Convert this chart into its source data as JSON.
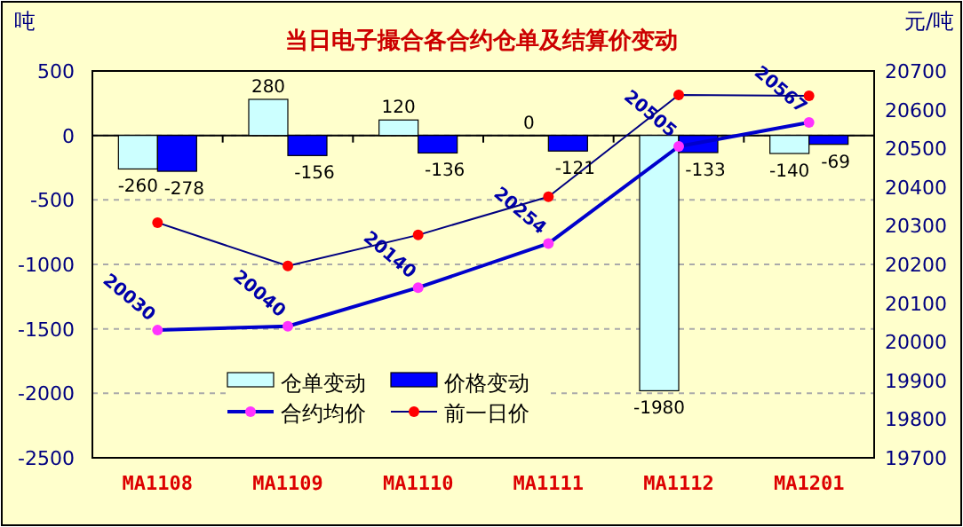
{
  "chart_data": {
    "type": "bar",
    "title": "当日电子撮合各合约仓单及结算价变动",
    "ylabel": "吨",
    "y2label": "元/吨",
    "categories": [
      "MA1108",
      "MA1109",
      "MA1110",
      "MA1111",
      "MA1112",
      "MA1201"
    ],
    "series": [
      {
        "name": "仓单变动",
        "color": "#ccffff",
        "values": [
          -260,
          280,
          120,
          0,
          -1980,
          -140
        ],
        "value_labels": [
          "-260",
          "280",
          "120",
          "0",
          "-1980",
          "-140"
        ]
      },
      {
        "name": "价格变动",
        "color": "#0000ff",
        "values": [
          -278,
          -156,
          -136,
          -121,
          -133,
          -69
        ],
        "value_labels": [
          "-278",
          "-156",
          "-136",
          "-121",
          "-133",
          "-69"
        ]
      },
      {
        "name": "合约均价",
        "type": "line",
        "axis": "y2",
        "color": "#0000cc",
        "marker": "circle",
        "values": [
          20030,
          20040,
          20140,
          20254,
          20505,
          20567
        ],
        "value_labels": [
          "20030",
          "20040",
          "20140",
          "20254",
          "20505",
          "20567"
        ]
      },
      {
        "name": "前一日价",
        "type": "line",
        "axis": "y2",
        "color": "#000080",
        "marker": "circle",
        "values": [
          20308,
          20196,
          20276,
          20375,
          20638,
          20636
        ]
      }
    ],
    "ylim": [
      -2500,
      500
    ],
    "yticks": [
      -2500,
      -2000,
      -1500,
      -1000,
      -500,
      0,
      500
    ],
    "y2lim": [
      19700,
      20700
    ],
    "y2ticks": [
      19700,
      19800,
      19900,
      20000,
      20100,
      20200,
      20300,
      20400,
      20500,
      20600,
      20700
    ],
    "grid": "y",
    "legend": "bottom left"
  }
}
